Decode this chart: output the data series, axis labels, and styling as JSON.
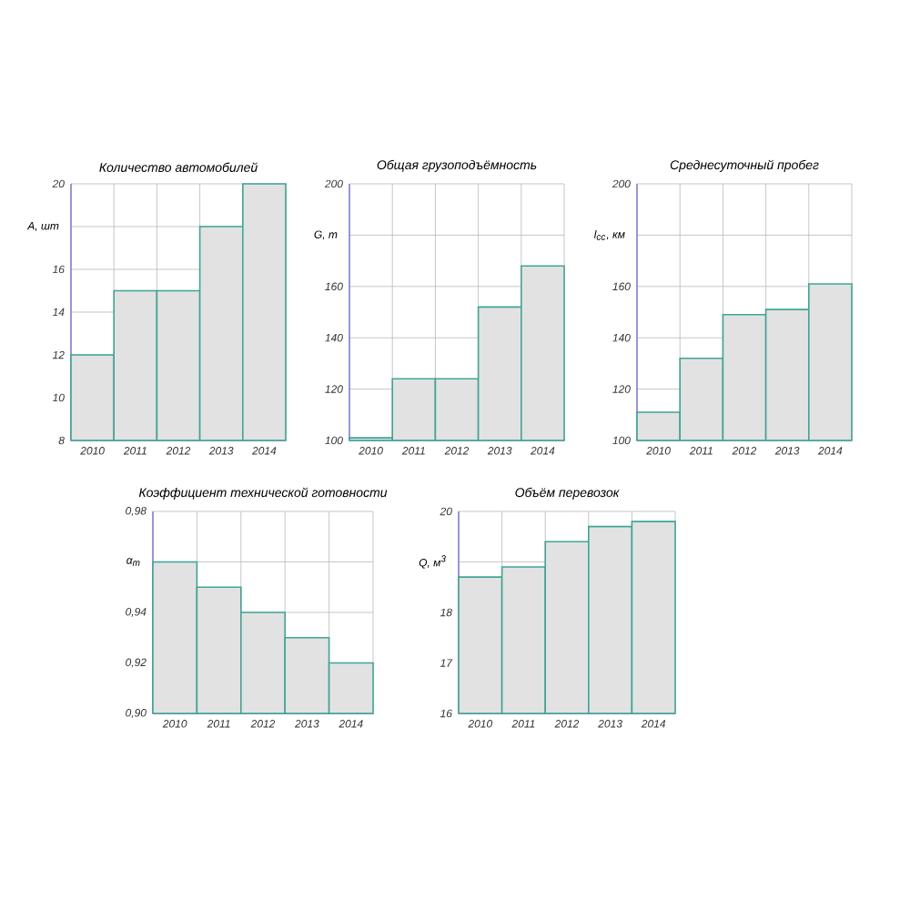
{
  "chart_data": [
    {
      "type": "bar",
      "title": "Количество автомобилей",
      "ylabel": "A, шт",
      "categories": [
        "2010",
        "2011",
        "2012",
        "2013",
        "2014"
      ],
      "values": [
        12,
        15,
        15,
        18,
        20
      ],
      "color": "#3fa595",
      "ylim": [
        8,
        20
      ],
      "yticks": [
        8,
        10,
        12,
        14,
        16,
        {
          "value": 18,
          "label": null
        },
        20
      ],
      "grid": true
    },
    {
      "type": "bar",
      "title": "Общая грузоподъёмность",
      "ylabel": "G, т",
      "categories": [
        "2010",
        "2011",
        "2012",
        "2013",
        "2014"
      ],
      "values": [
        101,
        124,
        124,
        152,
        168
      ],
      "color": "#3fa595",
      "ylim": [
        100,
        200
      ],
      "yticks": [
        100,
        120,
        140,
        160,
        {
          "value": 180,
          "label": null
        },
        200
      ],
      "grid": true
    },
    {
      "type": "bar",
      "title": "Среднесуточный пробег",
      "ylabel": "l$_{сс}$, км",
      "categories": [
        "2010",
        "2011",
        "2012",
        "2013",
        "2014"
      ],
      "values": [
        111,
        132,
        149,
        151,
        161
      ],
      "color": "#3fa595",
      "ylim": [
        100,
        200
      ],
      "yticks": [
        100,
        120,
        140,
        160,
        {
          "value": 180,
          "label": null
        },
        200
      ],
      "grid": true
    },
    {
      "type": "bar",
      "title": "Коэффициент технической готовности",
      "ylabel": "α$_{т}$",
      "categories": [
        "2010",
        "2011",
        "2012",
        "2013",
        "2014"
      ],
      "values": [
        0.96,
        0.95,
        0.94,
        0.93,
        0.92
      ],
      "color": "#3fa595",
      "ylim": [
        0.9,
        0.98
      ],
      "yticks": [
        {
          "value": 0.9,
          "label": "0,90"
        },
        {
          "value": 0.92,
          "label": "0,92"
        },
        {
          "value": 0.94,
          "label": "0,94"
        },
        {
          "value": 0.96,
          "label": null
        },
        {
          "value": 0.98,
          "label": "0,98"
        }
      ],
      "grid": true
    },
    {
      "type": "bar",
      "title": "Объём перевозок",
      "ylabel": "Q, м$^{3}$",
      "categories": [
        "2010",
        "2011",
        "2012",
        "2013",
        "2014"
      ],
      "values": [
        18.7,
        18.9,
        19.4,
        19.7,
        19.8
      ],
      "color": "#3fa595",
      "ylim": [
        16,
        20
      ],
      "yticks": [
        16,
        17,
        18,
        {
          "value": 19,
          "label": null
        },
        20
      ],
      "grid": true
    }
  ]
}
